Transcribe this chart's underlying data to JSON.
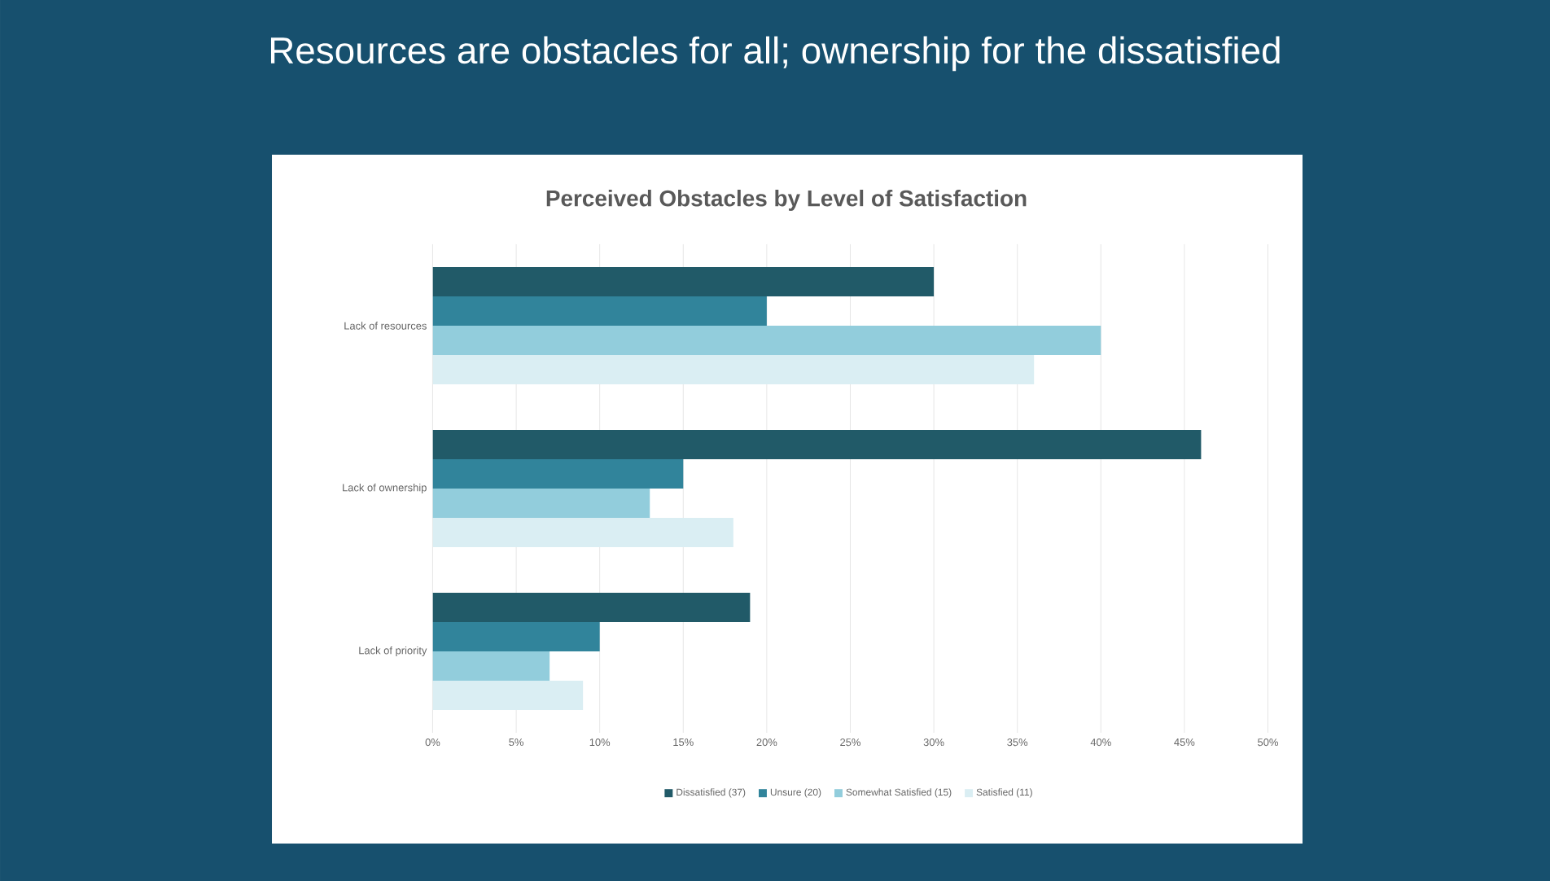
{
  "chart_data": {
    "type": "bar",
    "orientation": "horizontal",
    "title": "Resources are obstacles for all; ownership for the dissatisfied",
    "subtitle": "Perceived Obstacles by Level of Satisfaction",
    "categories": [
      "Lack of resources",
      "Lack of ownership",
      "Lack of priority"
    ],
    "series": [
      {
        "name": "Dissatisfied (37)",
        "color": "#215a68",
        "values": [
          30,
          46,
          19
        ]
      },
      {
        "name": "Unsure (20)",
        "color": "#31849b",
        "values": [
          20,
          15,
          10
        ]
      },
      {
        "name": "Somewhat Satisfied (15)",
        "color": "#92cddc",
        "values": [
          40,
          13,
          7
        ]
      },
      {
        "name": "Satisfied (11)",
        "color": "#daeef3",
        "values": [
          36,
          18,
          9
        ]
      }
    ],
    "xlim": [
      0,
      50
    ],
    "xticks": [
      {
        "value": 0,
        "label": "0%"
      },
      {
        "value": 5,
        "label": "5%"
      },
      {
        "value": 10,
        "label": "10%"
      },
      {
        "value": 15,
        "label": "15%"
      },
      {
        "value": 20,
        "label": "20%"
      },
      {
        "value": 25,
        "label": "25%"
      },
      {
        "value": 30,
        "label": "30%"
      },
      {
        "value": 35,
        "label": "35%"
      },
      {
        "value": 40,
        "label": "40%"
      },
      {
        "value": 45,
        "label": "45%"
      },
      {
        "value": 50,
        "label": "50%"
      }
    ],
    "grid": "x",
    "legend": "bottom"
  }
}
